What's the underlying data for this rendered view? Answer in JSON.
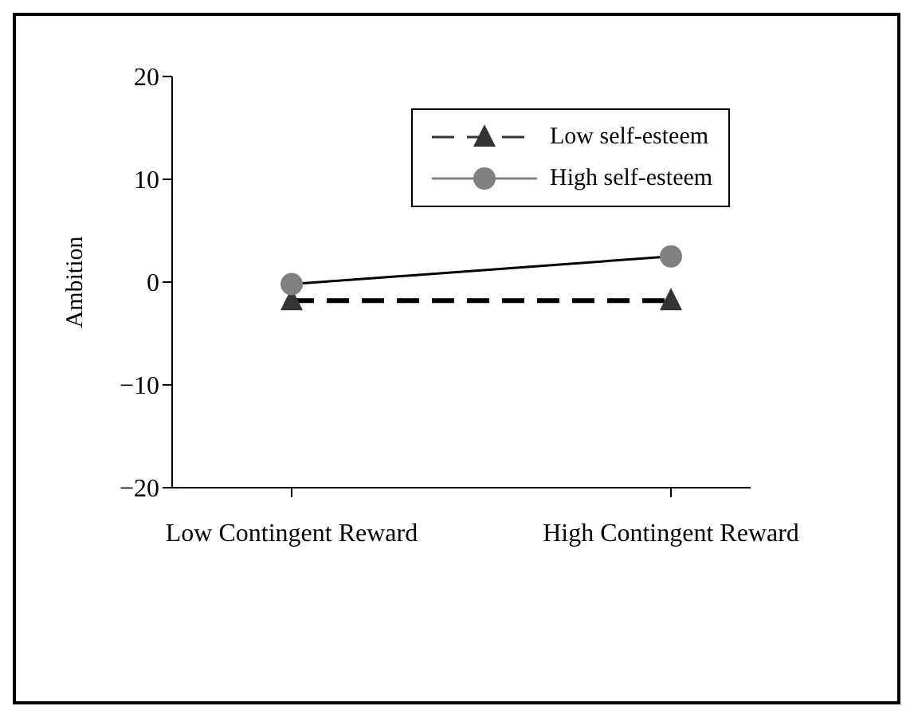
{
  "chart_data": {
    "type": "line",
    "ylabel": "Ambition",
    "categories": [
      "Low Contingent Reward",
      "High Contingent Reward"
    ],
    "series": [
      {
        "name": "Low self-esteem",
        "color": "#333333",
        "values": [
          -1.8,
          -1.8
        ],
        "marker": "triangle",
        "line_style": "dashed"
      },
      {
        "name": "High self-esteem",
        "color": "#808080",
        "values": [
          -0.2,
          2.5
        ],
        "marker": "circle",
        "line_style": "solid"
      }
    ],
    "ylim": [
      -20,
      20
    ],
    "yticks": [
      -20,
      -10,
      0,
      10,
      20
    ],
    "grid": false,
    "legend": "top right"
  }
}
